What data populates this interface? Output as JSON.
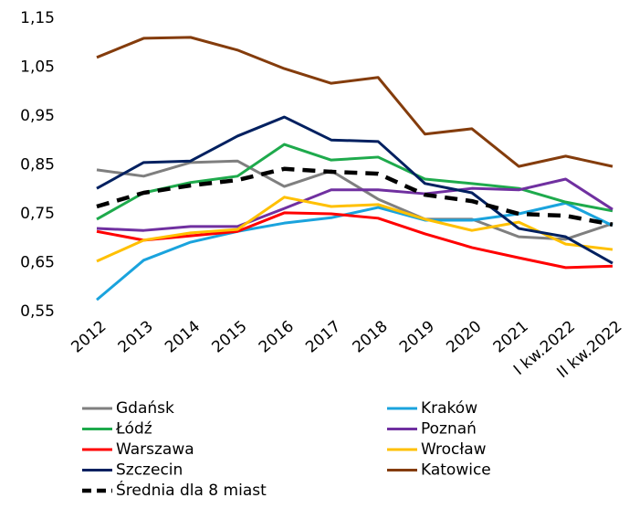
{
  "chart_data": {
    "type": "line",
    "categories": [
      "2012",
      "2013",
      "2014",
      "2015",
      "2016",
      "2017",
      "2018",
      "2019",
      "2020",
      "2021",
      "I kw.2022",
      "II kw.2022"
    ],
    "ylim": [
      0.55,
      1.15
    ],
    "yticks": [
      {
        "value": 0.55,
        "label": "0,55"
      },
      {
        "value": 0.65,
        "label": "0,65"
      },
      {
        "value": 0.75,
        "label": "0,75"
      },
      {
        "value": 0.85,
        "label": "0,85"
      },
      {
        "value": 0.95,
        "label": "0,95"
      },
      {
        "value": 1.05,
        "label": "1,05"
      },
      {
        "value": 1.15,
        "label": "1,15"
      }
    ],
    "grid": false,
    "legend": "bottom",
    "series": [
      {
        "name": "Gdańsk",
        "color": "#7f7f7f",
        "values": [
          0.84,
          0.827,
          0.855,
          0.858,
          0.806,
          0.838,
          0.78,
          0.739,
          0.739,
          0.703,
          0.698,
          0.73
        ]
      },
      {
        "name": "Kraków",
        "color": "#1aa3dd",
        "values": [
          0.574,
          0.655,
          0.692,
          0.714,
          0.731,
          0.742,
          0.763,
          0.737,
          0.737,
          0.75,
          0.772,
          0.726
        ]
      },
      {
        "name": "Łódź",
        "color": "#1eaa4c",
        "values": [
          0.739,
          0.793,
          0.814,
          0.827,
          0.892,
          0.86,
          0.866,
          0.821,
          0.812,
          0.802,
          0.774,
          0.756
        ]
      },
      {
        "name": "Poznań",
        "color": "#7030a0",
        "values": [
          0.72,
          0.716,
          0.724,
          0.724,
          0.761,
          0.799,
          0.799,
          0.791,
          0.802,
          0.799,
          0.821,
          0.759
        ]
      },
      {
        "name": "Warszawa",
        "color": "#ff0000",
        "values": [
          0.714,
          0.696,
          0.705,
          0.714,
          0.752,
          0.75,
          0.741,
          0.709,
          0.681,
          0.66,
          0.64,
          0.643
        ]
      },
      {
        "name": "Wrocław",
        "color": "#ffc000",
        "values": [
          0.653,
          0.696,
          0.711,
          0.718,
          0.784,
          0.765,
          0.769,
          0.739,
          0.716,
          0.733,
          0.688,
          0.677
        ]
      },
      {
        "name": "Szczecin",
        "color": "#002060",
        "values": [
          0.802,
          0.855,
          0.858,
          0.909,
          0.948,
          0.901,
          0.898,
          0.812,
          0.793,
          0.72,
          0.703,
          0.649
        ]
      },
      {
        "name": "Katowice",
        "color": "#843c0c",
        "values": [
          1.07,
          1.109,
          1.111,
          1.085,
          1.047,
          1.017,
          1.029,
          0.913,
          0.924,
          0.847,
          0.868,
          0.847
        ]
      },
      {
        "name": "Średnia dla 8 miast",
        "color": "#000000",
        "dashed": true,
        "values": [
          0.765,
          0.793,
          0.808,
          0.819,
          0.842,
          0.836,
          0.832,
          0.789,
          0.776,
          0.75,
          0.746,
          0.728
        ]
      }
    ]
  }
}
